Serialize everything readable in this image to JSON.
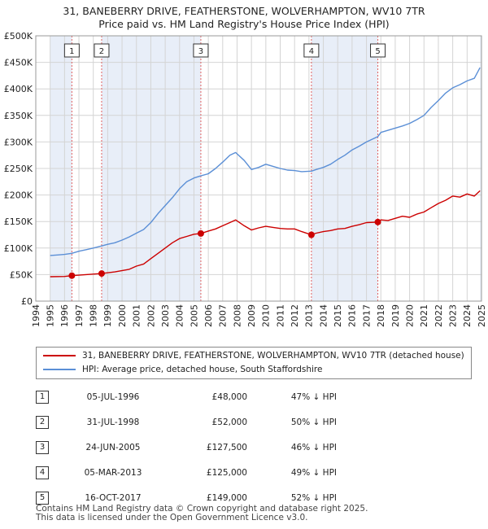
{
  "title_line1": "31, BANEBERRY DRIVE, FEATHERSTONE, WOLVERHAMPTON, WV10 7TR",
  "title_line2": "Price paid vs. HM Land Registry's House Price Index (HPI)",
  "legend": {
    "red_label": "31, BANEBERRY DRIVE, FEATHERSTONE, WOLVERHAMPTON, WV10 7TR (detached house)",
    "blue_label": "HPI: Average price, detached house, South Staffordshire"
  },
  "sales_table": [
    {
      "num": "1",
      "date": "05-JUL-1996",
      "price": "£48,000",
      "pct": "47% ↓ HPI"
    },
    {
      "num": "2",
      "date": "31-JUL-1998",
      "price": "£52,000",
      "pct": "50% ↓ HPI"
    },
    {
      "num": "3",
      "date": "24-JUN-2005",
      "price": "£127,500",
      "pct": "46% ↓ HPI"
    },
    {
      "num": "4",
      "date": "05-MAR-2013",
      "price": "£125,000",
      "pct": "49% ↓ HPI"
    },
    {
      "num": "5",
      "date": "16-OCT-2017",
      "price": "£149,000",
      "pct": "52% ↓ HPI"
    }
  ],
  "footer_line1": "Contains HM Land Registry data © Crown copyright and database right 2025.",
  "footer_line2": "This data is licensed under the Open Government Licence v3.0.",
  "colors": {
    "red": "#cc0000",
    "blue": "#5b8fd6",
    "band": "#e8eef8",
    "grid": "#d4d4d4",
    "marker_line": "#e06060"
  },
  "chart_data": {
    "type": "line",
    "title": "Price paid vs. HM Land Registry's House Price Index (HPI)",
    "xlim": [
      1994,
      2025
    ],
    "ylim": [
      0,
      500000
    ],
    "x_ticks": [
      1994,
      1995,
      1996,
      1997,
      1998,
      1999,
      2000,
      2001,
      2002,
      2003,
      2004,
      2005,
      2006,
      2007,
      2008,
      2009,
      2010,
      2011,
      2012,
      2013,
      2014,
      2015,
      2016,
      2017,
      2018,
      2019,
      2020,
      2021,
      2022,
      2023,
      2024,
      2025
    ],
    "y_ticks": [
      0,
      50000,
      100000,
      150000,
      200000,
      250000,
      300000,
      350000,
      400000,
      450000,
      500000
    ],
    "y_tick_labels": [
      "£0",
      "£50K",
      "£100K",
      "£150K",
      "£200K",
      "£250K",
      "£300K",
      "£350K",
      "£400K",
      "£450K",
      "£500K"
    ],
    "series": [
      {
        "name": "31, BANEBERRY DRIVE, FEATHERSTONE, WOLVERHAMPTON, WV10 7TR (detached house)",
        "color": "#cc0000",
        "x": [
          1995.0,
          1996.0,
          1996.5,
          1997.5,
          1998.58,
          1999.5,
          2000.5,
          2001.0,
          2001.5,
          2002.0,
          2002.5,
          2003.0,
          2003.5,
          2004.0,
          2004.5,
          2005.0,
          2005.48,
          2006.0,
          2006.5,
          2007.0,
          2007.5,
          2007.9,
          2008.5,
          2009.0,
          2009.5,
          2010.0,
          2010.5,
          2011.0,
          2011.5,
          2012.0,
          2012.5,
          2013.17,
          2013.5,
          2014.0,
          2014.5,
          2015.0,
          2015.5,
          2016.0,
          2016.5,
          2017.0,
          2017.79,
          2018.0,
          2018.5,
          2019.0,
          2019.5,
          2020.0,
          2020.5,
          2021.0,
          2021.5,
          2022.0,
          2022.5,
          2023.0,
          2023.5,
          2024.0,
          2024.5,
          2024.9
        ],
        "y": [
          46000,
          46500,
          48000,
          50000,
          52000,
          55000,
          60000,
          66000,
          70000,
          80000,
          90000,
          100000,
          110000,
          118000,
          122000,
          126000,
          127500,
          132000,
          136000,
          142000,
          148000,
          153000,
          142000,
          134000,
          138000,
          141000,
          139000,
          137000,
          136000,
          136000,
          131000,
          125000,
          128000,
          131000,
          133000,
          136000,
          137000,
          141000,
          144000,
          148000,
          149000,
          153000,
          152000,
          156000,
          160000,
          158000,
          164000,
          168000,
          176000,
          184000,
          190000,
          198000,
          196000,
          202000,
          198000,
          208000
        ]
      },
      {
        "name": "HPI: Average price, detached house, South Staffordshire",
        "color": "#5b8fd6",
        "x": [
          1995.0,
          1995.5,
          1996.0,
          1996.5,
          1997.0,
          1997.5,
          1998.0,
          1998.58,
          1999.0,
          1999.5,
          2000.0,
          2000.5,
          2001.0,
          2001.5,
          2002.0,
          2002.5,
          2003.0,
          2003.5,
          2004.0,
          2004.5,
          2005.0,
          2005.48,
          2006.0,
          2006.5,
          2007.0,
          2007.5,
          2007.9,
          2008.5,
          2009.0,
          2009.5,
          2010.0,
          2010.5,
          2011.0,
          2011.5,
          2012.0,
          2012.5,
          2013.17,
          2013.5,
          2014.0,
          2014.5,
          2015.0,
          2015.5,
          2016.0,
          2016.5,
          2017.0,
          2017.79,
          2018.0,
          2018.5,
          2019.0,
          2019.5,
          2020.0,
          2020.5,
          2021.0,
          2021.5,
          2022.0,
          2022.5,
          2023.0,
          2023.5,
          2024.0,
          2024.5,
          2024.9
        ],
        "y": [
          86000,
          87000,
          88000,
          90000,
          94000,
          97000,
          100000,
          104000,
          107000,
          110000,
          115000,
          121000,
          128000,
          135000,
          148000,
          165000,
          180000,
          195000,
          212000,
          225000,
          232000,
          236000,
          240000,
          250000,
          262000,
          275000,
          280000,
          265000,
          248000,
          252000,
          258000,
          254000,
          250000,
          247000,
          246000,
          244000,
          245000,
          248000,
          252000,
          258000,
          267000,
          275000,
          285000,
          292000,
          300000,
          310000,
          318000,
          322000,
          326000,
          330000,
          335000,
          342000,
          350000,
          365000,
          378000,
          392000,
          402000,
          408000,
          415000,
          420000,
          440000
        ]
      }
    ],
    "sales": [
      {
        "num": "1",
        "x": 1996.51,
        "y": 48000
      },
      {
        "num": "2",
        "x": 1998.58,
        "y": 52000
      },
      {
        "num": "3",
        "x": 2005.48,
        "y": 127500
      },
      {
        "num": "4",
        "x": 2013.17,
        "y": 125000
      },
      {
        "num": "5",
        "x": 2017.79,
        "y": 149000
      }
    ],
    "shaded_bands": [
      [
        1995.0,
        1996.51
      ],
      [
        1998.58,
        2005.48
      ],
      [
        2013.17,
        2017.79
      ],
      [
        2024.9,
        2025.0
      ]
    ]
  }
}
